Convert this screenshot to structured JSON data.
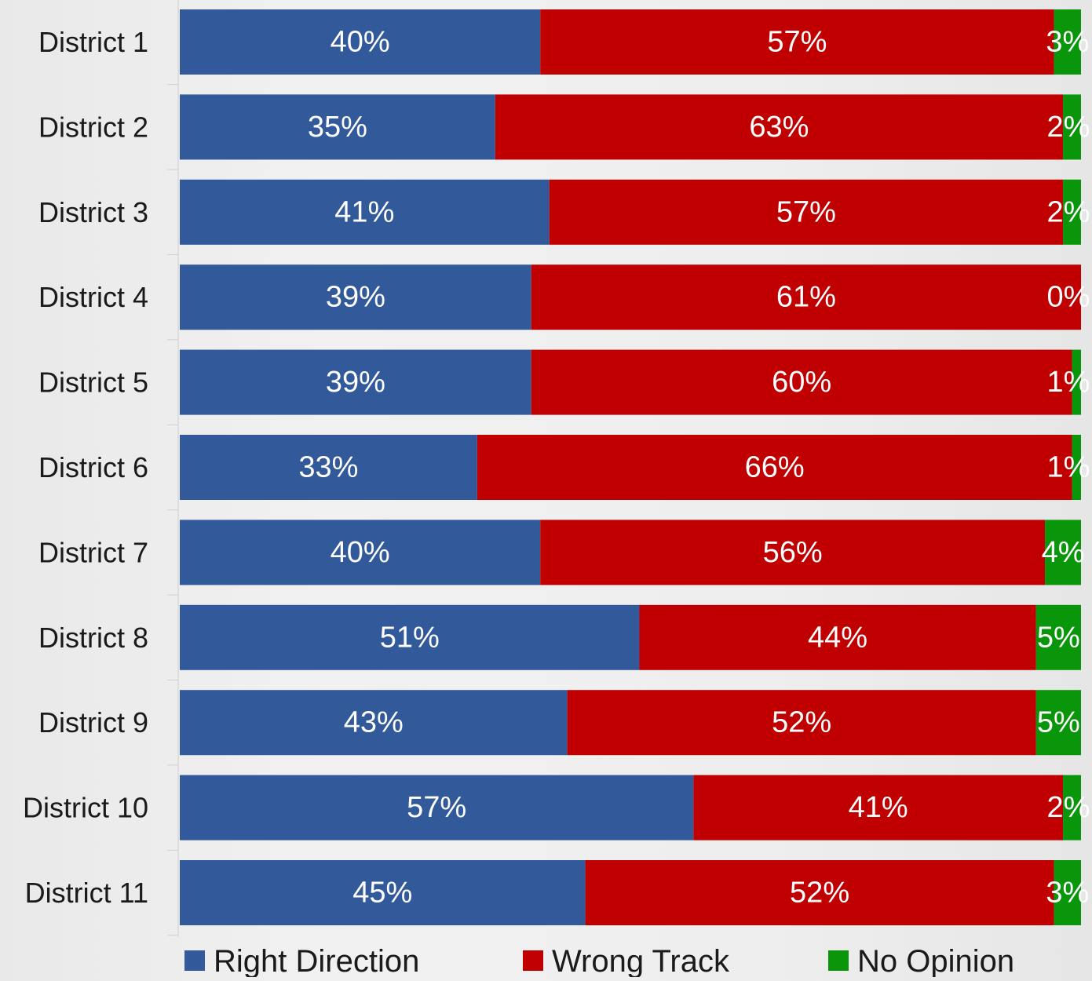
{
  "chart_data": {
    "type": "bar",
    "orientation": "horizontal",
    "stacked": true,
    "percent_stacked": true,
    "categories": [
      "District 1",
      "District 2",
      "District 3",
      "District 4",
      "District 5",
      "District 6",
      "District 7",
      "District 8",
      "District 9",
      "District 10",
      "District 11"
    ],
    "series": [
      {
        "name": "Right Direction",
        "color": "#325a9a",
        "values": [
          40,
          35,
          41,
          39,
          39,
          33,
          40,
          51,
          43,
          57,
          45
        ]
      },
      {
        "name": "Wrong Track",
        "color": "#c00000",
        "values": [
          57,
          63,
          57,
          61,
          60,
          66,
          56,
          44,
          52,
          41,
          52
        ]
      },
      {
        "name": "No Opinion",
        "color": "#0a960a",
        "values": [
          3,
          2,
          2,
          0,
          1,
          1,
          4,
          5,
          5,
          2,
          3
        ]
      }
    ],
    "value_suffix": "%",
    "xlim": [
      0,
      100
    ],
    "legend": "bottom",
    "grid": false
  }
}
